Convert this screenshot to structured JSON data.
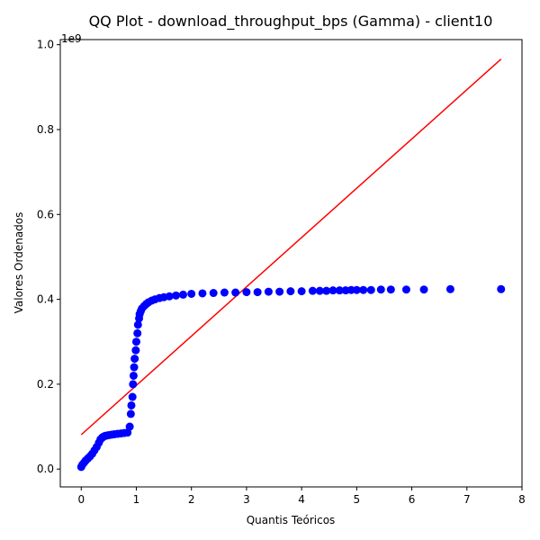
{
  "chart_data": {
    "type": "scatter",
    "title": "QQ Plot - download_throughput_bps (Gamma) - client10",
    "xlabel": "Quantis Teóricos",
    "ylabel": "Valores Ordenados",
    "y_offset_text": "1e9",
    "xlim": [
      -0.38,
      8.0
    ],
    "ylim": [
      -0.042,
      1.012
    ],
    "x_ticks": [
      0,
      1,
      2,
      3,
      4,
      5,
      6,
      7,
      8
    ],
    "x_tick_labels": [
      "0",
      "1",
      "2",
      "3",
      "4",
      "5",
      "6",
      "7",
      "8"
    ],
    "y_ticks": [
      0.0,
      0.2,
      0.4,
      0.6,
      0.8,
      1.0
    ],
    "y_tick_labels": [
      "0.0",
      "0.2",
      "0.4",
      "0.6",
      "0.8",
      "1.0"
    ],
    "grid": false,
    "series": [
      {
        "kind": "points",
        "color": "#0000ff",
        "x": [
          0.0,
          0.02,
          0.05,
          0.08,
          0.12,
          0.16,
          0.2,
          0.24,
          0.28,
          0.32,
          0.35,
          0.38,
          0.4,
          0.43,
          0.46,
          0.5,
          0.55,
          0.6,
          0.66,
          0.72,
          0.78,
          0.84,
          0.88,
          0.9,
          0.91,
          0.93,
          0.94,
          0.95,
          0.96,
          0.97,
          0.99,
          1.0,
          1.02,
          1.03,
          1.05,
          1.06,
          1.08,
          1.1,
          1.14,
          1.18,
          1.22,
          1.28,
          1.34,
          1.42,
          1.5,
          1.6,
          1.72,
          1.85,
          2.0,
          2.2,
          2.4,
          2.6,
          2.8,
          3.0,
          3.2,
          3.4,
          3.6,
          3.8,
          4.0,
          4.2,
          4.33,
          4.45,
          4.57,
          4.69,
          4.8,
          4.9,
          5.0,
          5.12,
          5.26,
          5.44,
          5.62,
          5.9,
          6.22,
          6.7,
          7.62
        ],
        "y": [
          0.005,
          0.01,
          0.015,
          0.02,
          0.025,
          0.03,
          0.036,
          0.044,
          0.052,
          0.062,
          0.07,
          0.074,
          0.076,
          0.078,
          0.079,
          0.08,
          0.081,
          0.082,
          0.083,
          0.084,
          0.085,
          0.086,
          0.1,
          0.13,
          0.15,
          0.17,
          0.2,
          0.22,
          0.24,
          0.26,
          0.28,
          0.3,
          0.32,
          0.34,
          0.355,
          0.365,
          0.372,
          0.378,
          0.384,
          0.389,
          0.393,
          0.397,
          0.4,
          0.403,
          0.405,
          0.407,
          0.409,
          0.411,
          0.413,
          0.414,
          0.415,
          0.416,
          0.416,
          0.417,
          0.417,
          0.418,
          0.418,
          0.419,
          0.419,
          0.42,
          0.42,
          0.42,
          0.421,
          0.421,
          0.421,
          0.422,
          0.422,
          0.422,
          0.422,
          0.423,
          0.423,
          0.423,
          0.423,
          0.424,
          0.424
        ]
      },
      {
        "kind": "reference-line",
        "color": "#ff0000",
        "x": [
          0.0,
          7.62
        ],
        "y": [
          0.081,
          0.966
        ]
      }
    ]
  }
}
